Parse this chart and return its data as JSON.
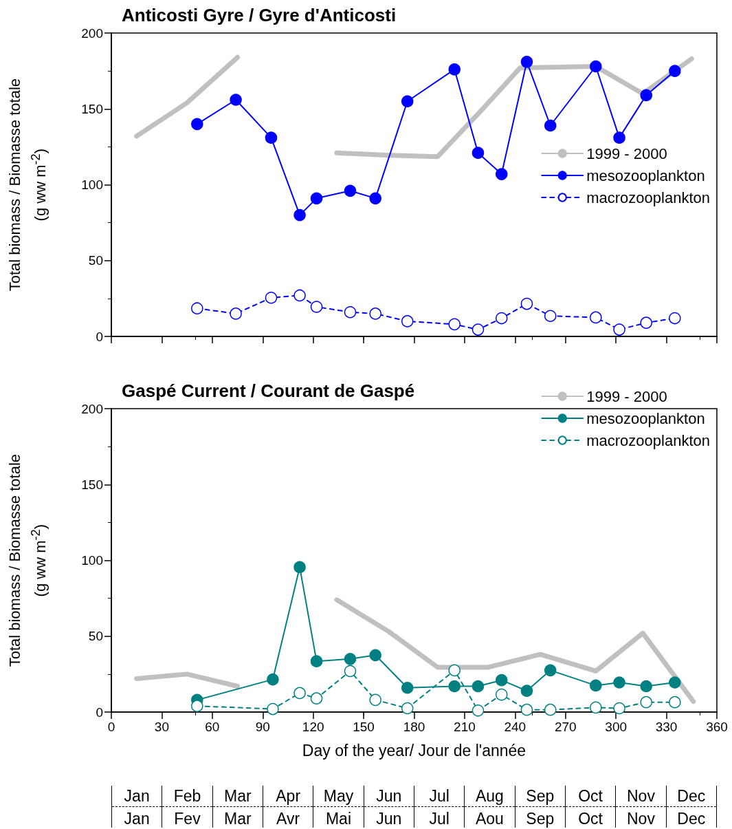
{
  "chart_data": [
    {
      "type": "line",
      "title": "Anticosti Gyre / Gyre d'Anticosti",
      "ylabel": "Total biomass / Biomasse totale\n(g ww m$^{-2}$)",
      "xlim": [
        0,
        360
      ],
      "xticks": [
        0,
        30,
        60,
        90,
        120,
        150,
        180,
        210,
        240,
        270,
        300,
        330,
        360
      ],
      "ylim": [
        0,
        200
      ],
      "yticks": [
        0,
        50,
        100,
        150,
        200
      ],
      "tick_labels": "y",
      "legend": "right",
      "series": [
        {
          "name": "1999 - 2000",
          "color": "#c0c0c0",
          "marker": "none",
          "line_style": "solid",
          "x": [
            15,
            45,
            75,
            105,
            134,
            163,
            194,
            220,
            243,
            288,
            316,
            345
          ],
          "values": [
            132,
            154,
            184,
            null,
            121,
            119.5,
            118.5,
            149,
            177,
            178,
            160,
            183
          ]
        },
        {
          "name": "mesozooplankton",
          "color": "#0000ff",
          "marker": "circle",
          "line_style": "solid",
          "x": [
            51,
            74,
            95,
            112,
            122,
            142,
            157,
            176,
            204,
            218,
            232,
            247,
            261,
            288,
            302,
            318,
            335
          ],
          "values": [
            140,
            156,
            131,
            80,
            91,
            96,
            91,
            155,
            176,
            121,
            107,
            181,
            139,
            178,
            131,
            159,
            175
          ]
        },
        {
          "name": "macrozooplankton",
          "color": "#0000ff",
          "marker": "circle",
          "line_style": "dashed",
          "x": [
            51,
            74,
            95,
            112,
            122,
            142,
            157,
            176,
            204,
            218,
            232,
            247,
            261,
            288,
            302,
            318,
            335
          ],
          "values": [
            18.5,
            15,
            25.5,
            27,
            19.5,
            16,
            15,
            10,
            8,
            4.5,
            12,
            21.5,
            13.5,
            12.5,
            4.5,
            9,
            12
          ]
        }
      ]
    },
    {
      "type": "line",
      "title": "Gaspé Current / Courant de Gaspé",
      "ylabel": "Total biomass / Biomasse totale\n(g ww m$^{-2}$)",
      "xlabel": "Day of the year/ Jour de l'année",
      "xlim": [
        0,
        360
      ],
      "xticks": [
        0,
        30,
        60,
        90,
        120,
        150,
        180,
        210,
        240,
        270,
        300,
        330,
        360
      ],
      "ylim": [
        0,
        200
      ],
      "yticks": [
        0,
        50,
        100,
        150,
        200
      ],
      "legend": "top right",
      "annotations": [
        "Jan",
        "Jan",
        "Feb",
        "Fev",
        "Mar",
        "Mar",
        "Apr",
        "Avr",
        "May",
        "Mai",
        "Jun",
        "Jun",
        "Jul",
        "Jul",
        "Aug",
        "Aou",
        "Sep",
        "Sep",
        "Oct",
        "Oct",
        "Nov",
        "Nov",
        "Dec",
        "Dec"
      ],
      "series": [
        {
          "name": "1999 - 2000",
          "color": "#c0c0c0",
          "marker": "none",
          "line_style": "solid",
          "x": [
            15,
            45,
            75,
            105,
            134,
            165,
            194,
            224,
            255,
            288,
            316,
            346
          ],
          "values": [
            22,
            25,
            17,
            null,
            74,
            53,
            29.5,
            29.5,
            38,
            27,
            52,
            7
          ]
        },
        {
          "name": "mesozooplankton",
          "color": "#008080",
          "marker": "circle",
          "line_style": "solid",
          "x": [
            51,
            96,
            112,
            122,
            142,
            157,
            176,
            204,
            218,
            232,
            247,
            261,
            288,
            302,
            318,
            335
          ],
          "values": [
            8,
            21.5,
            95.5,
            33.5,
            35,
            37.5,
            16,
            17,
            17,
            21,
            14,
            27.5,
            17.5,
            19.5,
            17,
            19.5
          ]
        },
        {
          "name": "macrozooplankton",
          "color": "#008080",
          "marker": "circle",
          "line_style": "dashed",
          "x": [
            51,
            96,
            112,
            122,
            142,
            157,
            176,
            204,
            218,
            232,
            247,
            261,
            288,
            302,
            318,
            335
          ],
          "values": [
            4,
            2,
            12.5,
            9,
            27,
            8,
            2.5,
            27.5,
            1,
            11.5,
            1.5,
            1.5,
            3,
            2.5,
            6.5,
            6.5
          ]
        }
      ]
    }
  ]
}
